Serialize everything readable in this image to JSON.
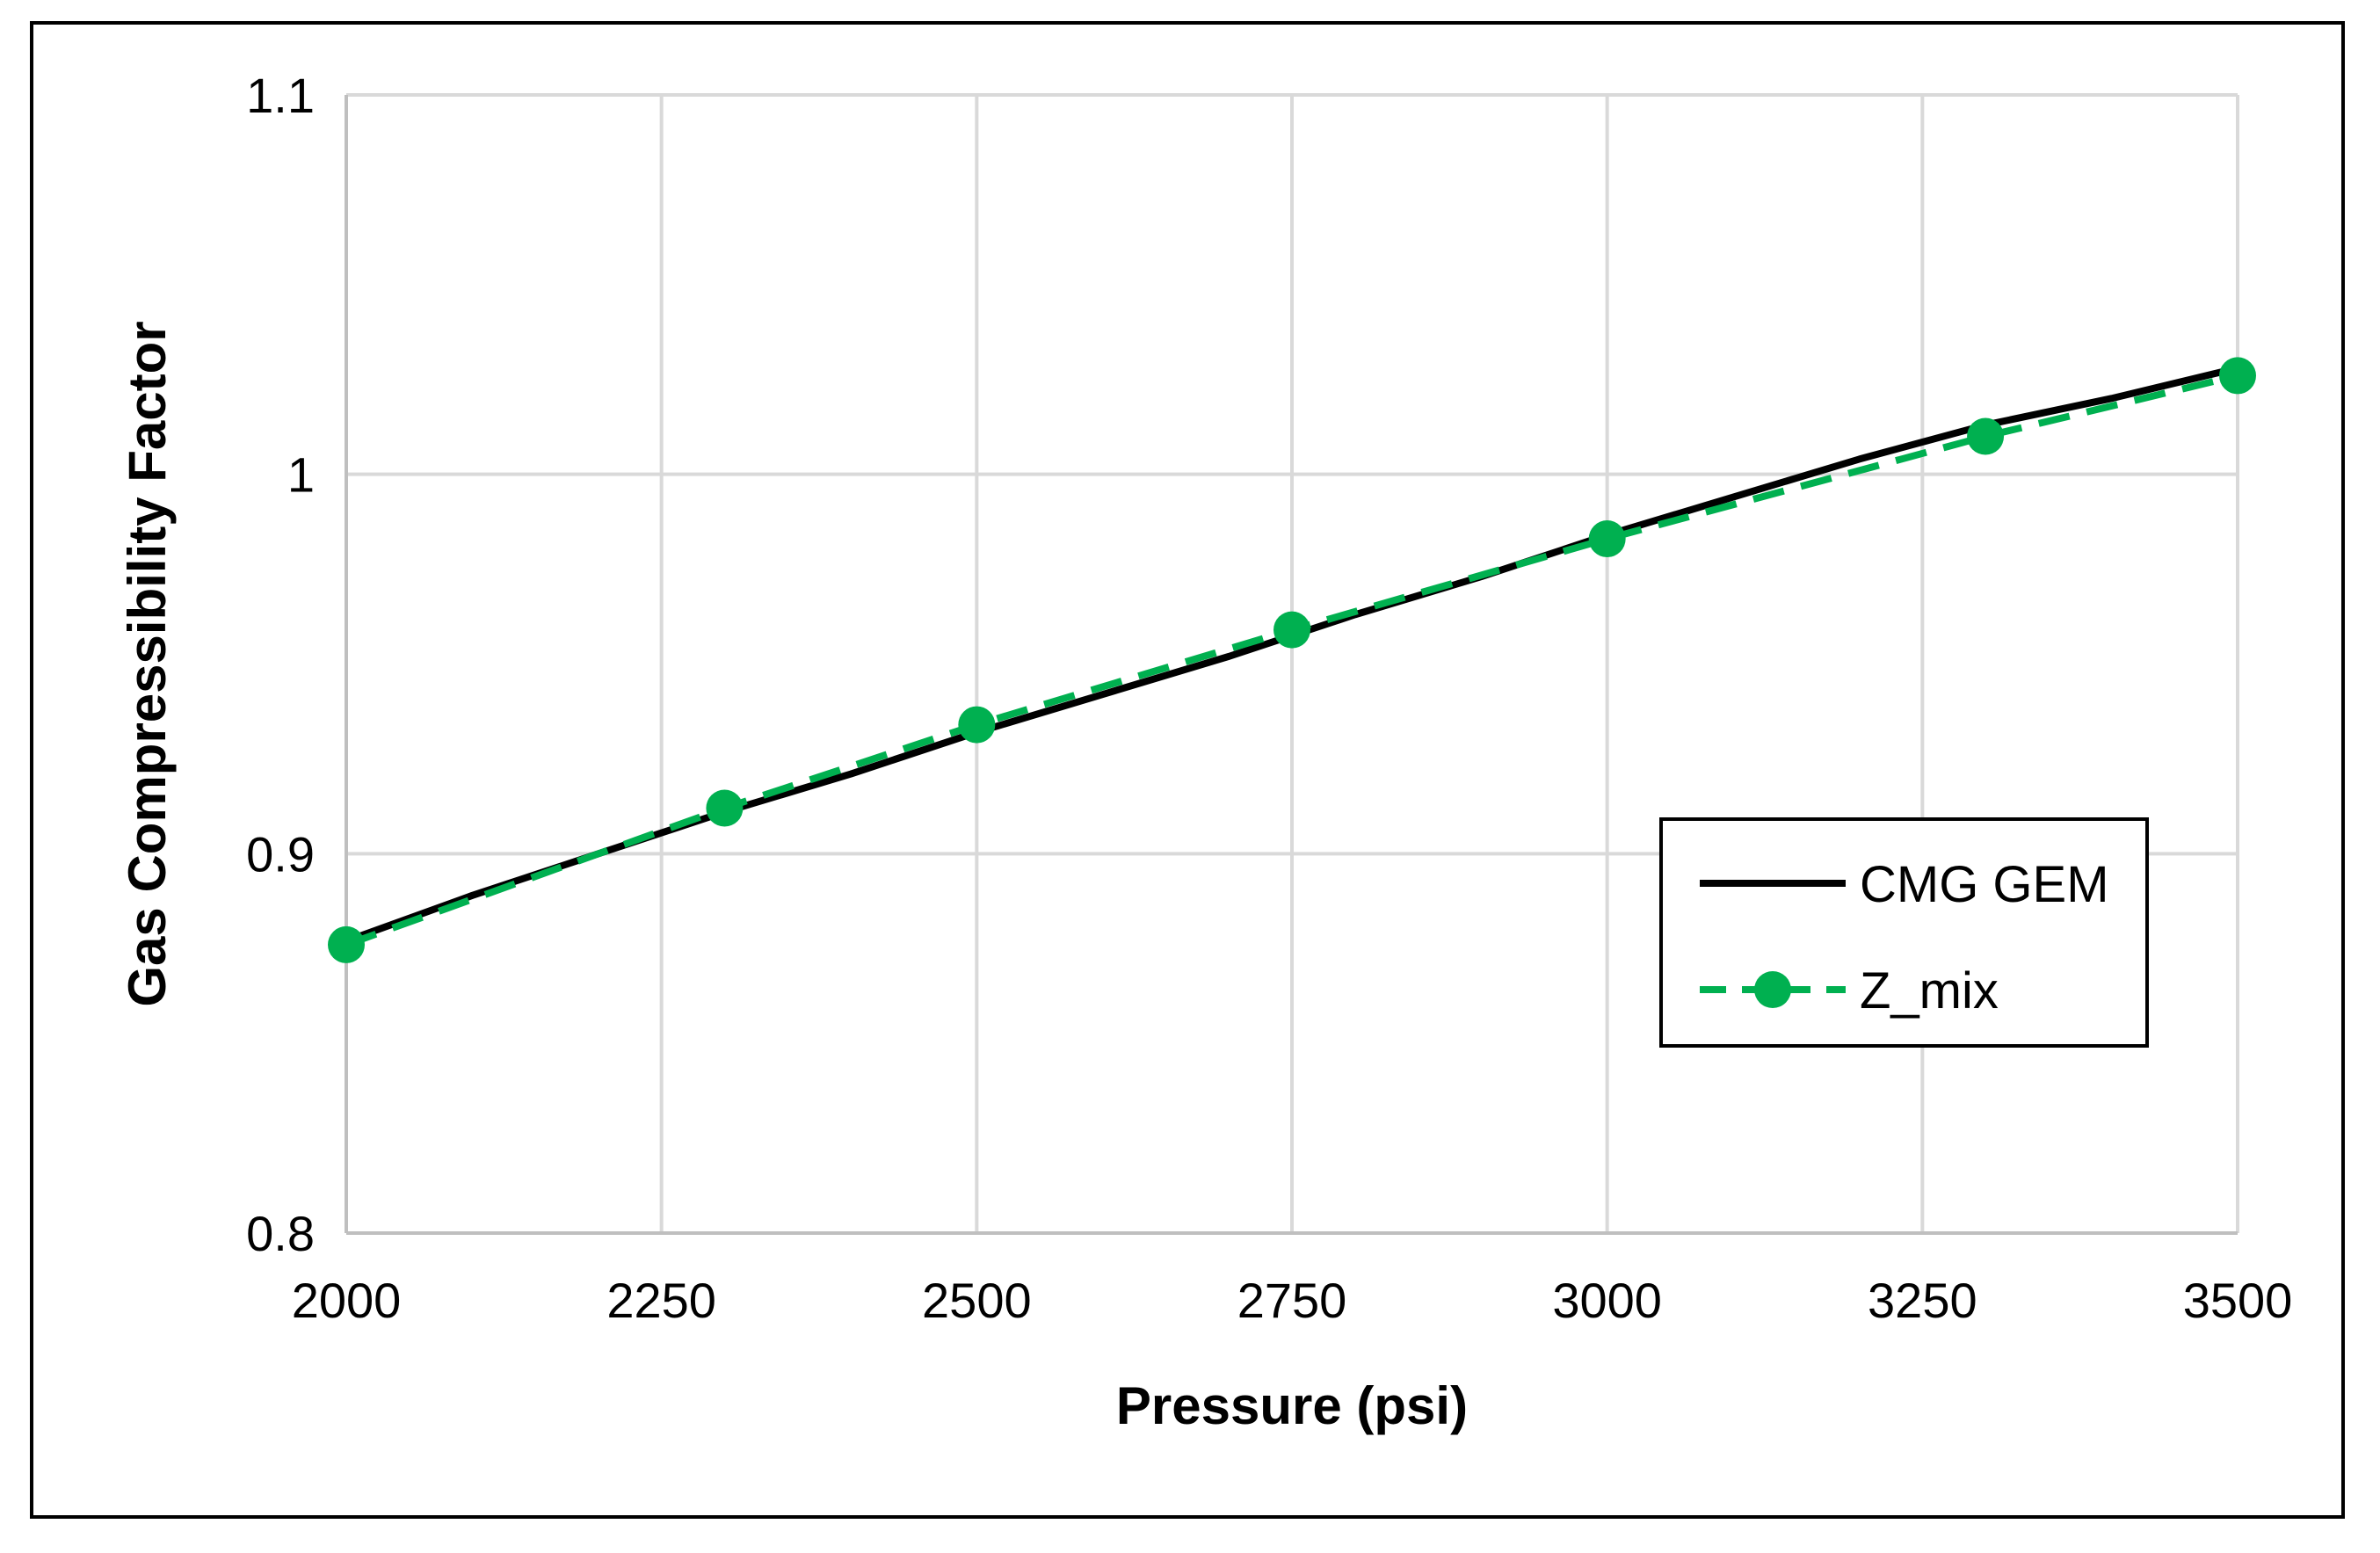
{
  "chart_data": {
    "type": "line",
    "title": "",
    "xlabel": "Pressure (psi)",
    "ylabel": "Gas Compressibility Factor",
    "xlim": [
      2000,
      3500
    ],
    "ylim": [
      0.8,
      1.1
    ],
    "x_ticks": [
      2000,
      2250,
      2500,
      2750,
      3000,
      3250,
      3500
    ],
    "x_tick_labels": [
      "2000",
      "2250",
      "2500",
      "2750",
      "3000",
      "3250",
      "3500"
    ],
    "y_ticks": [
      0.8,
      0.9,
      1.0,
      1.1
    ],
    "y_tick_labels": [
      "0.8",
      "0.9",
      "1",
      "1.1"
    ],
    "grid": true,
    "legend_position": "right",
    "series": [
      {
        "name": "CMG GEM",
        "color": "#000000",
        "style": "solid",
        "x": [
          2000,
          2100,
          2200,
          2300,
          2400,
          2500,
          2600,
          2700,
          2800,
          2900,
          3000,
          3100,
          3200,
          3300,
          3400,
          3500
        ],
        "values": [
          0.877,
          0.889,
          0.9,
          0.911,
          0.921,
          0.932,
          0.942,
          0.952,
          0.963,
          0.973,
          0.984,
          0.994,
          1.004,
          1.013,
          1.02,
          1.028
        ]
      },
      {
        "name": "Z_mix",
        "color": "#00B050",
        "style": "dashed-markers",
        "x": [
          2000,
          2300,
          2500,
          2750,
          3000,
          3300,
          3500
        ],
        "values": [
          0.876,
          0.912,
          0.934,
          0.959,
          0.983,
          1.01,
          1.026
        ]
      }
    ]
  }
}
